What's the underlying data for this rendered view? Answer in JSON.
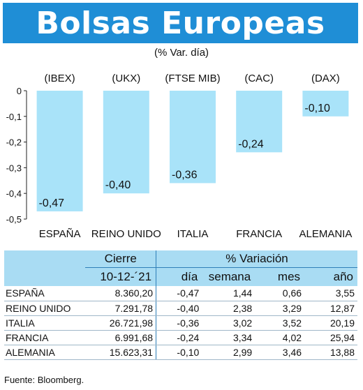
{
  "header": {
    "title": "Bolsas Europeas",
    "subtitle": "(% Var. día)"
  },
  "chart_data": {
    "type": "bar",
    "categories": [
      "ESPAÑA",
      "REINO UNIDO",
      "ITALIA",
      "FRANCIA",
      "ALEMANIA"
    ],
    "indices": [
      "(IBEX)",
      "(UKX)",
      "(FTSE MIB)",
      "(CAC)",
      "(DAX)"
    ],
    "values": [
      -0.47,
      -0.4,
      -0.36,
      -0.24,
      -0.1
    ],
    "value_labels": [
      "-0,47",
      "-0,40",
      "-0,36",
      "-0,24",
      "-0,10"
    ],
    "ylim": [
      -0.5,
      0
    ],
    "yticks": [
      0,
      -0.1,
      -0.2,
      -0.3,
      -0.4,
      -0.5
    ],
    "ytick_labels": [
      "0",
      "-0,1",
      "-0,2",
      "-0,3",
      "-0,4",
      "-0,5"
    ],
    "bar_color": "#a9e3f9",
    "grid": false
  },
  "table": {
    "header_cierre": "Cierre",
    "header_variacion": "% Variación",
    "date": "10-12-´21",
    "columns": [
      "día",
      "semana",
      "mes",
      "año"
    ],
    "rows": [
      {
        "country": "ESPAÑA",
        "cierre": "8.360,20",
        "dia": "-0,47",
        "semana": "1,44",
        "mes": "0,66",
        "anio": "3,55"
      },
      {
        "country": "REINO UNIDO",
        "cierre": "7.291,78",
        "dia": "-0,40",
        "semana": "2,38",
        "mes": "3,29",
        "anio": "12,87"
      },
      {
        "country": "ITALIA",
        "cierre": "26.721,98",
        "dia": "-0,36",
        "semana": "3,02",
        "mes": "3,52",
        "anio": "20,19"
      },
      {
        "country": "FRANCIA",
        "cierre": "6.991,68",
        "dia": "-0,24",
        "semana": "3,34",
        "mes": "4,02",
        "anio": "25,94"
      },
      {
        "country": "ALEMANIA",
        "cierre": "15.623,31",
        "dia": "-0,10",
        "semana": "2,99",
        "mes": "3,46",
        "anio": "13,88"
      }
    ]
  },
  "source": "Fuente: Bloomberg.",
  "colors": {
    "title_bg": "#1f8ed6",
    "table_header_bg": "#a9dcf3"
  }
}
